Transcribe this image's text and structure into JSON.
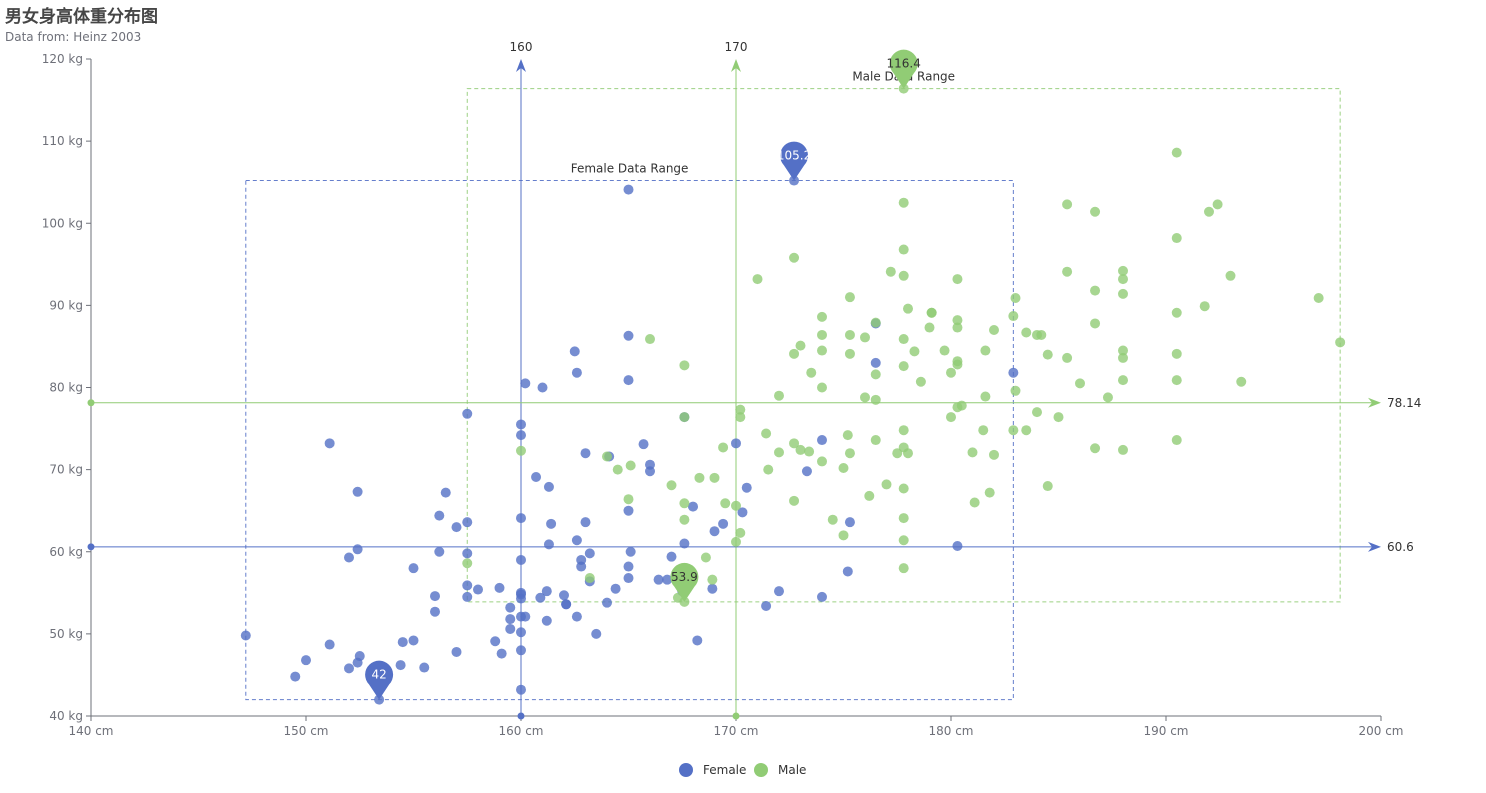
{
  "title": "男女身高体重分布图",
  "subtitle": "Data from: Heinz 2003",
  "chart_data": {
    "type": "scatter",
    "xlim": [
      140,
      200
    ],
    "ylim": [
      40,
      120
    ],
    "x_ticks": [
      "140 cm",
      "150 cm",
      "160 cm",
      "170 cm",
      "180 cm",
      "190 cm",
      "200 cm"
    ],
    "y_ticks": [
      "40 kg",
      "50 kg",
      "60 kg",
      "70 kg",
      "80 kg",
      "90 kg",
      "100 kg",
      "110 kg",
      "120 kg"
    ],
    "grid": false,
    "legend_position": "bottom-center",
    "series": [
      {
        "name": "Female",
        "color": "#5470c6",
        "points": [
          [
            147.2,
            49.8
          ],
          [
            149.5,
            44.8
          ],
          [
            150,
            46.8
          ],
          [
            151.1,
            48.7
          ],
          [
            151.1,
            73.2
          ],
          [
            152,
            59.3
          ],
          [
            152,
            45.8
          ],
          [
            152.4,
            46.5
          ],
          [
            152.4,
            67.3
          ],
          [
            152.4,
            60.3
          ],
          [
            152.5,
            47.3
          ],
          [
            153.4,
            42
          ],
          [
            154.4,
            46.2
          ],
          [
            154.5,
            49
          ],
          [
            155,
            58
          ],
          [
            155,
            49.2
          ],
          [
            155.5,
            45.9
          ],
          [
            156,
            54.6
          ],
          [
            156,
            52.7
          ],
          [
            156.2,
            60
          ],
          [
            156.2,
            64.4
          ],
          [
            156.5,
            67.2
          ],
          [
            157,
            47.8
          ],
          [
            157,
            63
          ],
          [
            157.5,
            54.5
          ],
          [
            157.5,
            55.9
          ],
          [
            157.5,
            76.8
          ],
          [
            157.5,
            59.8
          ],
          [
            157.5,
            63.6
          ],
          [
            158,
            55.4
          ],
          [
            158.8,
            49.1
          ],
          [
            159,
            55.6
          ],
          [
            159.1,
            47.6
          ],
          [
            159.5,
            51.8
          ],
          [
            159.5,
            50.6
          ],
          [
            159.5,
            53.2
          ],
          [
            160,
            75.5
          ],
          [
            160,
            64.1
          ],
          [
            160,
            55
          ],
          [
            160,
            59
          ],
          [
            160,
            54.3
          ],
          [
            160,
            50.2
          ],
          [
            160,
            52.1
          ],
          [
            160,
            54.8
          ],
          [
            160,
            48
          ],
          [
            160,
            43.2
          ],
          [
            160.2,
            52.1
          ],
          [
            160.7,
            69.1
          ],
          [
            160.9,
            54.4
          ],
          [
            161.2,
            51.6
          ],
          [
            161.2,
            55.2
          ],
          [
            161.3,
            67.9
          ],
          [
            161.3,
            60.9
          ],
          [
            161.4,
            63.4
          ],
          [
            162,
            54.7
          ],
          [
            162.1,
            53.6
          ],
          [
            162.1,
            53.6
          ],
          [
            162.5,
            84.4
          ],
          [
            162.6,
            61.4
          ],
          [
            162.6,
            52.1
          ],
          [
            162.8,
            58.2
          ],
          [
            162.8,
            59
          ],
          [
            163,
            72
          ],
          [
            163.2,
            59.8
          ],
          [
            163.2,
            56.4
          ],
          [
            163.5,
            50
          ],
          [
            164,
            53.8
          ],
          [
            164.4,
            55.5
          ],
          [
            165,
            65
          ],
          [
            165,
            58.2
          ],
          [
            165,
            56.8
          ],
          [
            165,
            86.3
          ],
          [
            165,
            104.1
          ],
          [
            165.1,
            60
          ],
          [
            165.7,
            73.1
          ],
          [
            166,
            69.8
          ],
          [
            166.4,
            56.6
          ],
          [
            166.8,
            56.6
          ],
          [
            167,
            59.4
          ],
          [
            167.5,
            55.2
          ],
          [
            167.6,
            61
          ],
          [
            167.6,
            76.4
          ],
          [
            168,
            65.5
          ],
          [
            168.2,
            49.2
          ],
          [
            168.9,
            55.5
          ],
          [
            169,
            62.5
          ],
          [
            169.4,
            63.4
          ],
          [
            170,
            73.2
          ],
          [
            170.3,
            64.8
          ],
          [
            170.5,
            67.8
          ],
          [
            171.4,
            53.4
          ],
          [
            172,
            55.2
          ],
          [
            172.7,
            105.2
          ],
          [
            173.3,
            69.8
          ],
          [
            174,
            54.5
          ],
          [
            174,
            73.6
          ],
          [
            175.2,
            57.6
          ],
          [
            175.3,
            63.6
          ],
          [
            176.5,
            83
          ],
          [
            180.3,
            60.7
          ],
          [
            160.2,
            80.5
          ],
          [
            161,
            80
          ],
          [
            162.6,
            81.8
          ],
          [
            165,
            80.9
          ],
          [
            176.5,
            87.8
          ],
          [
            182.9,
            81.8
          ],
          [
            160,
            74.2
          ],
          [
            163,
            63.6
          ],
          [
            164.1,
            71.6
          ],
          [
            166,
            70.6
          ]
        ]
      },
      {
        "name": "Male",
        "color": "#91cc75",
        "points": [
          [
            157.5,
            58.6
          ],
          [
            160,
            72.3
          ],
          [
            163.2,
            56.8
          ],
          [
            164,
            71.6
          ],
          [
            164.5,
            70
          ],
          [
            165,
            66.4
          ],
          [
            165.1,
            70.5
          ],
          [
            166,
            85.9
          ],
          [
            167,
            68.1
          ],
          [
            167.3,
            54.4
          ],
          [
            167.6,
            53.9
          ],
          [
            167.6,
            63.9
          ],
          [
            167.6,
            65.9
          ],
          [
            167.6,
            76.4
          ],
          [
            168.3,
            69
          ],
          [
            168.6,
            59.3
          ],
          [
            168.9,
            56.6
          ],
          [
            169,
            69
          ],
          [
            169.5,
            65.9
          ],
          [
            170,
            61.2
          ],
          [
            170,
            65.6
          ],
          [
            170.2,
            77.3
          ],
          [
            170.2,
            62.3
          ],
          [
            170.2,
            76.4
          ],
          [
            171,
            93.2
          ],
          [
            171.4,
            74.4
          ],
          [
            171.5,
            70
          ],
          [
            172,
            72.1
          ],
          [
            172.7,
            66.2
          ],
          [
            172.7,
            73.2
          ],
          [
            172.7,
            84.1
          ],
          [
            172.7,
            95.8
          ],
          [
            173,
            72.4
          ],
          [
            173.5,
            81.8
          ],
          [
            174,
            80
          ],
          [
            174,
            86.4
          ],
          [
            174,
            88.6
          ],
          [
            174,
            71
          ],
          [
            174.5,
            63.9
          ],
          [
            175,
            70.2
          ],
          [
            175,
            62
          ],
          [
            175.2,
            74.2
          ],
          [
            175.3,
            91
          ],
          [
            175.3,
            72
          ],
          [
            175.3,
            84.1
          ],
          [
            175.3,
            86.4
          ],
          [
            176,
            78.8
          ],
          [
            176.2,
            66.8
          ],
          [
            176.5,
            73.6
          ],
          [
            176.5,
            81.6
          ],
          [
            176.5,
            87.9
          ],
          [
            177,
            68.2
          ],
          [
            177.2,
            94.1
          ],
          [
            177.5,
            72
          ],
          [
            177.8,
            64.1
          ],
          [
            177.8,
            58
          ],
          [
            177.8,
            61.4
          ],
          [
            177.8,
            67.7
          ],
          [
            177.8,
            72.7
          ],
          [
            177.8,
            74.8
          ],
          [
            177.8,
            82.6
          ],
          [
            177.8,
            85.9
          ],
          [
            177.8,
            93.6
          ],
          [
            177.8,
            96.8
          ],
          [
            177.8,
            102.5
          ],
          [
            177.8,
            116.4
          ],
          [
            178,
            89.6
          ],
          [
            178,
            72
          ],
          [
            178.6,
            80.7
          ],
          [
            179,
            87.3
          ],
          [
            179.1,
            89.1
          ],
          [
            179.7,
            84.5
          ],
          [
            180,
            81.8
          ],
          [
            180,
            76.4
          ],
          [
            180.3,
            82.8
          ],
          [
            180.3,
            83.2
          ],
          [
            180.3,
            88.2
          ],
          [
            180.3,
            93.2
          ],
          [
            180.5,
            77.8
          ],
          [
            181,
            72.1
          ],
          [
            181.1,
            66
          ],
          [
            181.5,
            74.8
          ],
          [
            181.6,
            78.9
          ],
          [
            181.6,
            84.5
          ],
          [
            181.8,
            67.2
          ],
          [
            182,
            71.8
          ],
          [
            182,
            87
          ],
          [
            182.9,
            88.7
          ],
          [
            182.9,
            74.8
          ],
          [
            183,
            90.9
          ],
          [
            183,
            79.6
          ],
          [
            183.5,
            74.8
          ],
          [
            184,
            77
          ],
          [
            184,
            86.4
          ],
          [
            184.5,
            84
          ],
          [
            184.5,
            68
          ],
          [
            185,
            76.4
          ],
          [
            185.4,
            94.1
          ],
          [
            185.4,
            102.3
          ],
          [
            185.4,
            83.6
          ],
          [
            186,
            80.5
          ],
          [
            186.7,
            101.4
          ],
          [
            186.7,
            91.8
          ],
          [
            186.7,
            87.8
          ],
          [
            186.7,
            72.6
          ],
          [
            187.3,
            78.8
          ],
          [
            188,
            72.4
          ],
          [
            188,
            80.9
          ],
          [
            188,
            83.6
          ],
          [
            188,
            84.5
          ],
          [
            188,
            91.4
          ],
          [
            188,
            93.2
          ],
          [
            188,
            94.2
          ],
          [
            190.5,
            73.6
          ],
          [
            190.5,
            84.1
          ],
          [
            190.5,
            89.1
          ],
          [
            190.5,
            98.2
          ],
          [
            190.5,
            108.6
          ],
          [
            190.5,
            80.9
          ],
          [
            191.8,
            89.9
          ],
          [
            192,
            101.4
          ],
          [
            192.4,
            102.3
          ],
          [
            193,
            93.6
          ],
          [
            193.5,
            80.7
          ],
          [
            197.1,
            90.9
          ],
          [
            198.1,
            85.5
          ],
          [
            180.3,
            77.6
          ],
          [
            176.5,
            78.5
          ],
          [
            173.4,
            72.2
          ],
          [
            169.4,
            72.7
          ],
          [
            172,
            79
          ],
          [
            176,
            86.1
          ],
          [
            179.1,
            89.1
          ],
          [
            184.2,
            86.4
          ],
          [
            180.3,
            87.3
          ],
          [
            178.3,
            84.4
          ],
          [
            174,
            84.5
          ],
          [
            183.5,
            86.7
          ],
          [
            167.6,
            82.7
          ],
          [
            173,
            85.1
          ]
        ]
      }
    ],
    "markers": [
      {
        "series": "Female",
        "kind": "max",
        "x": 172.7,
        "y": 105.2,
        "label": "105.2"
      },
      {
        "series": "Female",
        "kind": "min",
        "x": 153.4,
        "y": 42,
        "label": "42"
      },
      {
        "series": "Male",
        "kind": "max",
        "x": 177.8,
        "y": 116.4,
        "label": "116.4"
      },
      {
        "series": "Male",
        "kind": "min",
        "x": 167.6,
        "y": 53.9,
        "label": "53.9"
      }
    ],
    "mark_lines": [
      {
        "series": "Female",
        "axis": "x",
        "value": 160,
        "label": "160"
      },
      {
        "series": "Male",
        "axis": "x",
        "value": 170,
        "label": "170"
      },
      {
        "series": "Female",
        "axis": "y",
        "value": 60.6,
        "label": "60.6"
      },
      {
        "series": "Male",
        "axis": "y",
        "value": 78.14,
        "label": "78.14"
      }
    ],
    "mark_areas": [
      {
        "series": "Female",
        "name": "Female Data Range",
        "x": [
          147.2,
          182.9
        ],
        "y": [
          42,
          105.2
        ]
      },
      {
        "series": "Male",
        "name": "Male Data Range",
        "x": [
          157.5,
          198.1
        ],
        "y": [
          53.9,
          116.4
        ]
      }
    ]
  }
}
